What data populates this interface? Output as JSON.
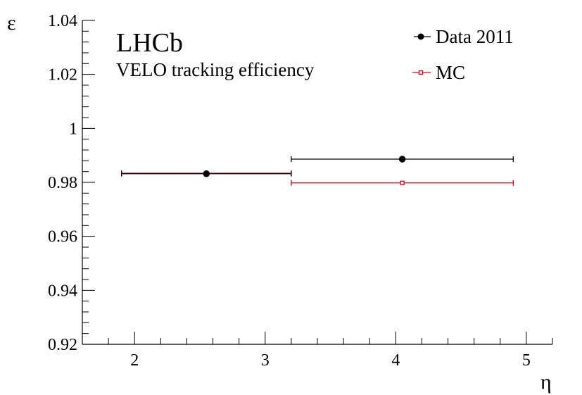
{
  "chart_data": {
    "type": "scatter",
    "title": "LHCb",
    "subtitle": "VELO tracking efficiency",
    "xlabel": "η",
    "ylabel": "ε",
    "xlim": [
      1.6,
      5.2
    ],
    "ylim": [
      0.92,
      1.04
    ],
    "x_major_ticks": [
      2,
      3,
      4,
      5
    ],
    "x_tick_labels": [
      "2",
      "3",
      "4",
      "5"
    ],
    "y_major_ticks": [
      0.92,
      0.94,
      0.96,
      0.98,
      1.0,
      1.02,
      1.04
    ],
    "y_tick_labels": [
      "0.92",
      "0.94",
      "0.96",
      "0.98",
      "1",
      "1.02",
      "1.04"
    ],
    "legend_position": "top-right",
    "series": [
      {
        "name": "Data 2011",
        "color": "#000000",
        "marker": "filled-circle",
        "points": [
          {
            "x": 2.55,
            "xlow": 1.9,
            "xhigh": 3.2,
            "y": 0.9832
          },
          {
            "x": 4.05,
            "xlow": 3.2,
            "xhigh": 4.9,
            "y": 0.9886
          }
        ]
      },
      {
        "name": "MC",
        "color": "#e8000b",
        "marker": "open-square",
        "points": [
          {
            "x": 2.55,
            "xlow": 1.9,
            "xhigh": 3.2,
            "y": 0.9834
          },
          {
            "x": 4.05,
            "xlow": 3.2,
            "xhigh": 4.9,
            "y": 0.9798
          }
        ]
      }
    ]
  }
}
